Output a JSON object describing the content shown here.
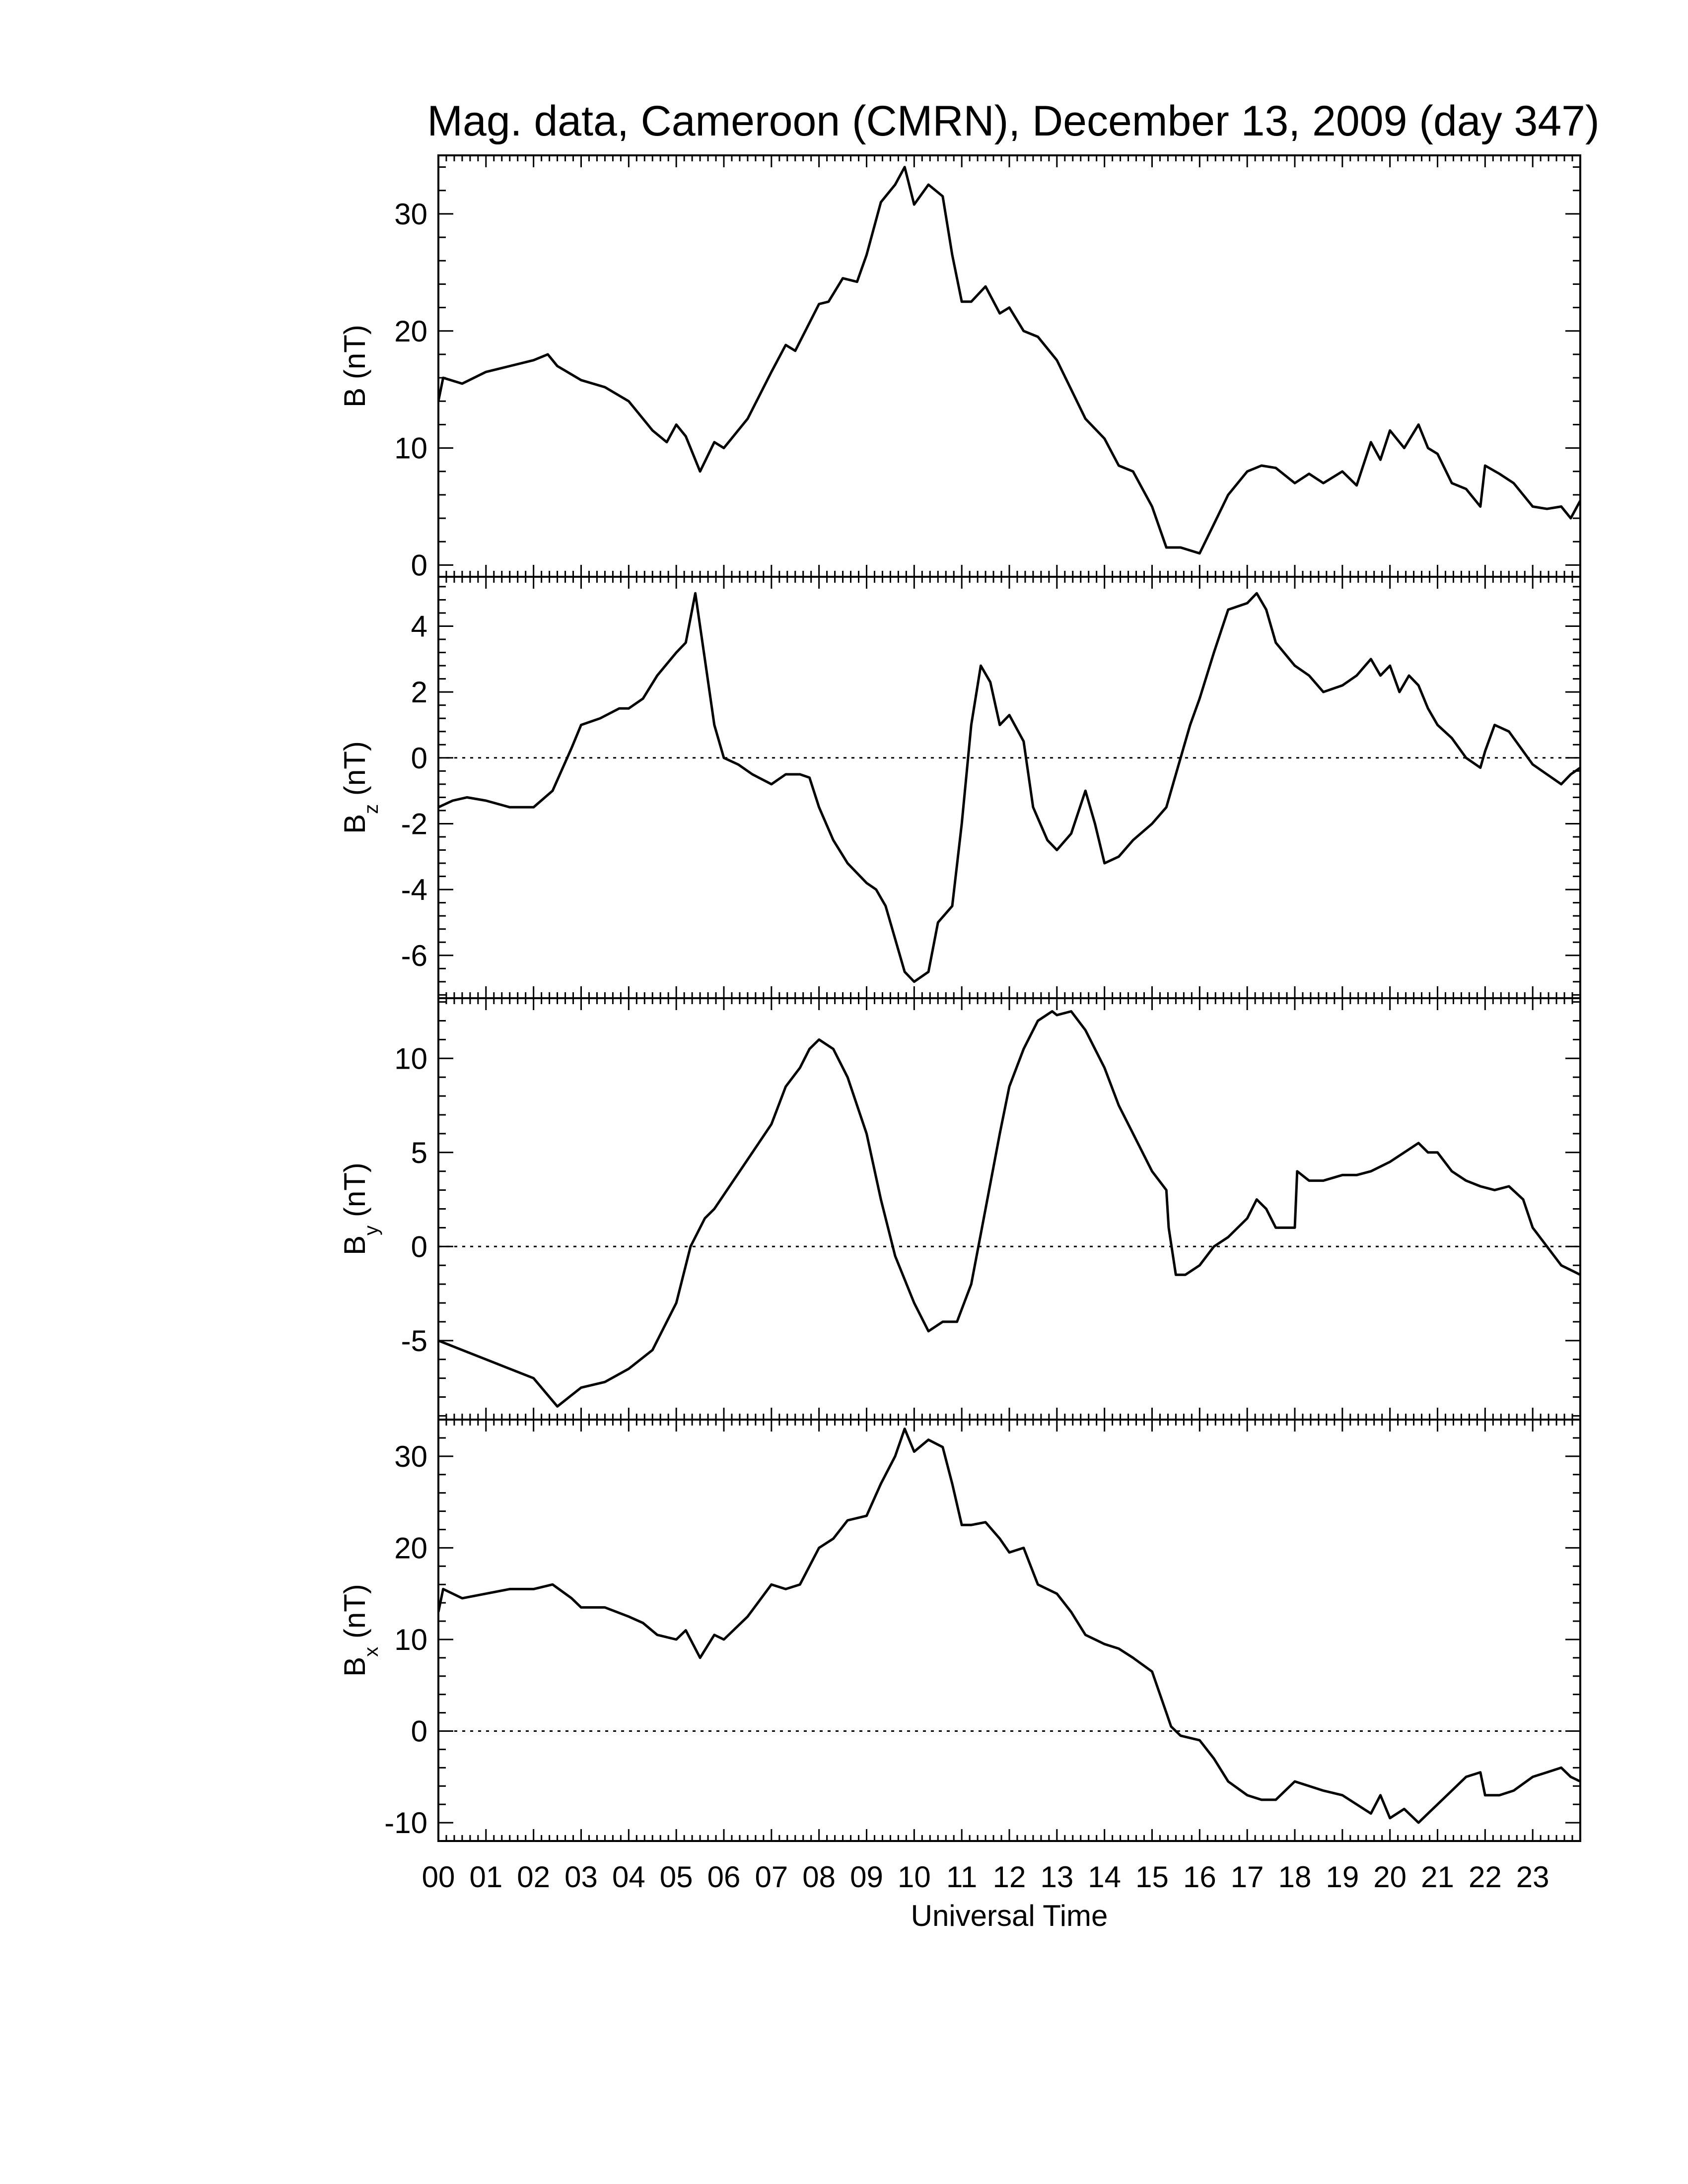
{
  "chart_data": {
    "type": "line",
    "title": "Mag. data, Cameroon (CMRN), December 13, 2009 (day 347)",
    "xlabel": "Universal Time",
    "x_tick_labels": [
      "00",
      "01",
      "02",
      "03",
      "04",
      "05",
      "06",
      "07",
      "08",
      "09",
      "10",
      "11",
      "12",
      "13",
      "14",
      "15",
      "16",
      "17",
      "18",
      "19",
      "20",
      "21",
      "22",
      "23"
    ],
    "xlim": [
      0,
      24
    ],
    "panels": [
      {
        "ylabel": "B (nT)",
        "ylabel_main": "B",
        "ylabel_sub": "",
        "ylabel_unit": " (nT)",
        "ylim": [
          -1,
          35
        ],
        "yticks": [
          0,
          10,
          20,
          30
        ],
        "ytick_labels": [
          "0",
          "10",
          "20",
          "30"
        ],
        "zero_line": false,
        "series": {
          "x": [
            0.0,
            0.1,
            0.5,
            1.0,
            1.5,
            2.0,
            2.3,
            2.5,
            3.0,
            3.5,
            4.0,
            4.2,
            4.5,
            4.8,
            5.0,
            5.2,
            5.5,
            5.8,
            6.0,
            6.5,
            7.0,
            7.3,
            7.5,
            8.0,
            8.2,
            8.5,
            8.8,
            9.0,
            9.3,
            9.6,
            9.8,
            10.0,
            10.3,
            10.6,
            10.8,
            11.0,
            11.2,
            11.5,
            11.8,
            12.0,
            12.3,
            12.6,
            13.0,
            13.3,
            13.6,
            14.0,
            14.3,
            14.6,
            15.0,
            15.3,
            15.4,
            15.6,
            16.0,
            16.3,
            16.6,
            17.0,
            17.3,
            17.6,
            18.0,
            18.3,
            18.6,
            19.0,
            19.3,
            19.6,
            19.8,
            20.0,
            20.3,
            20.6,
            20.8,
            21.0,
            21.3,
            21.6,
            21.9,
            22.0,
            22.3,
            22.6,
            23.0,
            23.3,
            23.6,
            23.8,
            24.0
          ],
          "y": [
            14.0,
            16.0,
            15.5,
            16.5,
            17.0,
            17.5,
            18.0,
            17.0,
            15.8,
            15.2,
            14.0,
            13.0,
            11.5,
            10.5,
            12.0,
            11.0,
            8.0,
            10.5,
            10.0,
            12.5,
            16.5,
            18.8,
            18.3,
            22.3,
            22.5,
            24.5,
            24.2,
            26.5,
            31.0,
            32.5,
            34.0,
            30.8,
            32.5,
            31.5,
            26.5,
            22.5,
            22.5,
            23.8,
            21.5,
            22.0,
            20.0,
            19.5,
            17.5,
            15.0,
            12.5,
            10.8,
            8.5,
            8.0,
            5.0,
            1.5,
            1.5,
            1.5,
            1.0,
            3.5,
            6.0,
            8.0,
            8.5,
            8.3,
            7.0,
            7.8,
            7.0,
            8.0,
            6.8,
            10.5,
            9.0,
            11.5,
            10.0,
            12.0,
            10.0,
            9.5,
            7.0,
            6.5,
            5.0,
            8.5,
            7.8,
            7.0,
            5.0,
            4.8,
            5.0,
            4.0,
            5.5
          ]
        }
      },
      {
        "ylabel": "Bz (nT)",
        "ylabel_main": "B",
        "ylabel_sub": "z",
        "ylabel_unit": " (nT)",
        "ylim": [
          -7.3,
          5.5
        ],
        "yticks": [
          -6,
          -4,
          -2,
          0,
          2,
          4
        ],
        "ytick_labels": [
          "-6",
          "-4",
          "-2",
          "0",
          "2",
          "4"
        ],
        "zero_line": true,
        "series": {
          "x": [
            0.0,
            0.3,
            0.6,
            1.0,
            1.5,
            2.0,
            2.4,
            2.8,
            3.0,
            3.4,
            3.8,
            4.0,
            4.3,
            4.6,
            5.0,
            5.2,
            5.4,
            5.6,
            5.8,
            6.0,
            6.3,
            6.6,
            7.0,
            7.3,
            7.6,
            7.8,
            8.0,
            8.3,
            8.6,
            9.0,
            9.2,
            9.4,
            9.6,
            9.8,
            10.0,
            10.3,
            10.5,
            10.8,
            11.0,
            11.2,
            11.4,
            11.6,
            11.8,
            12.0,
            12.3,
            12.5,
            12.8,
            13.0,
            13.3,
            13.6,
            13.8,
            14.0,
            14.3,
            14.6,
            15.0,
            15.3,
            15.5,
            15.8,
            16.0,
            16.3,
            16.6,
            17.0,
            17.2,
            17.4,
            17.6,
            18.0,
            18.3,
            18.6,
            19.0,
            19.3,
            19.6,
            19.8,
            20.0,
            20.2,
            20.4,
            20.6,
            20.8,
            21.0,
            21.3,
            21.6,
            21.9,
            22.0,
            22.2,
            22.5,
            22.8,
            23.0,
            23.3,
            23.6,
            23.8,
            24.0
          ],
          "y": [
            -1.5,
            -1.3,
            -1.2,
            -1.3,
            -1.5,
            -1.5,
            -1.0,
            0.3,
            1.0,
            1.2,
            1.5,
            1.5,
            1.8,
            2.5,
            3.2,
            3.5,
            5.0,
            3.0,
            1.0,
            0.0,
            -0.2,
            -0.5,
            -0.8,
            -0.5,
            -0.5,
            -0.6,
            -1.5,
            -2.5,
            -3.2,
            -3.8,
            -4.0,
            -4.5,
            -5.5,
            -6.5,
            -6.8,
            -6.5,
            -5.0,
            -4.5,
            -2.0,
            1.0,
            2.8,
            2.3,
            1.0,
            1.3,
            0.5,
            -1.5,
            -2.5,
            -2.8,
            -2.3,
            -1.0,
            -2.0,
            -3.2,
            -3.0,
            -2.5,
            -2.0,
            -1.5,
            -0.5,
            1.0,
            1.8,
            3.2,
            4.5,
            4.7,
            5.0,
            4.5,
            3.5,
            2.8,
            2.5,
            2.0,
            2.2,
            2.5,
            3.0,
            2.5,
            2.8,
            2.0,
            2.5,
            2.2,
            1.5,
            1.0,
            0.6,
            0.0,
            -0.3,
            0.2,
            1.0,
            0.8,
            0.2,
            -0.2,
            -0.5,
            -0.8,
            -0.5,
            -0.3
          ]
        }
      },
      {
        "ylabel": "By (nT)",
        "ylabel_main": "B",
        "ylabel_sub": "y",
        "ylabel_unit": " (nT)",
        "ylim": [
          -9.2,
          13.2
        ],
        "yticks": [
          -5,
          0,
          5,
          10
        ],
        "ytick_labels": [
          "-5",
          "0",
          "5",
          "10"
        ],
        "zero_line": true,
        "series": {
          "x": [
            0.0,
            0.5,
            1.0,
            1.5,
            2.0,
            2.5,
            3.0,
            3.5,
            4.0,
            4.5,
            4.8,
            5.0,
            5.3,
            5.6,
            5.8,
            6.2,
            6.6,
            7.0,
            7.3,
            7.6,
            7.8,
            8.0,
            8.3,
            8.6,
            9.0,
            9.3,
            9.6,
            10.0,
            10.3,
            10.6,
            10.9,
            11.2,
            11.5,
            11.8,
            12.0,
            12.3,
            12.6,
            12.9,
            13.0,
            13.3,
            13.6,
            14.0,
            14.3,
            14.6,
            15.0,
            15.3,
            15.35,
            15.5,
            15.7,
            16.0,
            16.3,
            16.6,
            17.0,
            17.2,
            17.4,
            17.6,
            18.0,
            18.05,
            18.3,
            18.6,
            19.0,
            19.3,
            19.6,
            20.0,
            20.3,
            20.6,
            20.8,
            21.0,
            21.3,
            21.6,
            21.9,
            22.2,
            22.5,
            22.8,
            23.0,
            23.3,
            23.6,
            24.0
          ],
          "y": [
            -5.0,
            -5.5,
            -6.0,
            -6.5,
            -7.0,
            -8.5,
            -7.5,
            -7.2,
            -6.5,
            -5.5,
            -4.0,
            -3.0,
            0.0,
            1.5,
            2.0,
            3.5,
            5.0,
            6.5,
            8.5,
            9.5,
            10.5,
            11.0,
            10.5,
            9.0,
            6.0,
            2.5,
            -0.5,
            -3.0,
            -4.5,
            -4.0,
            -4.0,
            -2.0,
            2.0,
            6.0,
            8.5,
            10.5,
            12.0,
            12.5,
            12.3,
            12.5,
            11.5,
            9.5,
            7.5,
            6.0,
            4.0,
            3.0,
            1.0,
            -1.5,
            -1.5,
            -1.0,
            0.0,
            0.5,
            1.5,
            2.5,
            2.0,
            1.0,
            1.0,
            4.0,
            3.5,
            3.5,
            3.8,
            3.8,
            4.0,
            4.5,
            5.0,
            5.5,
            5.0,
            5.0,
            4.0,
            3.5,
            3.2,
            3.0,
            3.2,
            2.5,
            1.0,
            0.0,
            -1.0,
            -1.5
          ]
        }
      },
      {
        "ylabel": "Bx (nT)",
        "ylabel_main": "B",
        "ylabel_sub": "x",
        "ylabel_unit": " (nT)",
        "ylim": [
          -12,
          34
        ],
        "yticks": [
          -10,
          0,
          10,
          20,
          30
        ],
        "ytick_labels": [
          "-10",
          "0",
          "10",
          "20",
          "30"
        ],
        "zero_line": true,
        "series": {
          "x": [
            0.0,
            0.1,
            0.5,
            1.0,
            1.5,
            2.0,
            2.4,
            2.8,
            3.0,
            3.5,
            4.0,
            4.3,
            4.6,
            5.0,
            5.2,
            5.5,
            5.8,
            6.0,
            6.5,
            7.0,
            7.3,
            7.6,
            8.0,
            8.3,
            8.6,
            9.0,
            9.3,
            9.6,
            9.8,
            10.0,
            10.3,
            10.6,
            10.8,
            11.0,
            11.2,
            11.5,
            11.8,
            12.0,
            12.3,
            12.6,
            13.0,
            13.3,
            13.6,
            14.0,
            14.3,
            14.6,
            15.0,
            15.3,
            15.4,
            15.6,
            16.0,
            16.3,
            16.6,
            17.0,
            17.3,
            17.6,
            18.0,
            18.3,
            18.6,
            19.0,
            19.3,
            19.6,
            19.8,
            20.0,
            20.3,
            20.6,
            20.8,
            21.0,
            21.3,
            21.6,
            21.9,
            22.0,
            22.3,
            22.6,
            23.0,
            23.3,
            23.6,
            23.8,
            24.0
          ],
          "y": [
            13.0,
            15.5,
            14.5,
            15.0,
            15.5,
            15.5,
            16.0,
            14.5,
            13.5,
            13.5,
            12.5,
            11.8,
            10.5,
            10.0,
            11.0,
            8.0,
            10.5,
            10.0,
            12.5,
            16.0,
            15.5,
            16.0,
            20.0,
            21.0,
            23.0,
            23.5,
            27.0,
            30.0,
            33.0,
            30.5,
            31.8,
            31.0,
            27.0,
            22.5,
            22.5,
            22.8,
            21.0,
            19.5,
            20.0,
            16.0,
            15.0,
            13.0,
            10.5,
            9.5,
            9.0,
            8.0,
            6.5,
            2.0,
            0.5,
            -0.5,
            -1.0,
            -3.0,
            -5.5,
            -7.0,
            -7.5,
            -7.5,
            -5.5,
            -6.0,
            -6.5,
            -7.0,
            -8.0,
            -9.0,
            -7.0,
            -9.5,
            -8.5,
            -10.0,
            -9.0,
            -8.0,
            -6.5,
            -5.0,
            -4.5,
            -7.0,
            -7.0,
            -6.5,
            -5.0,
            -4.5,
            -4.0,
            -5.0,
            -5.5
          ]
        }
      }
    ]
  }
}
